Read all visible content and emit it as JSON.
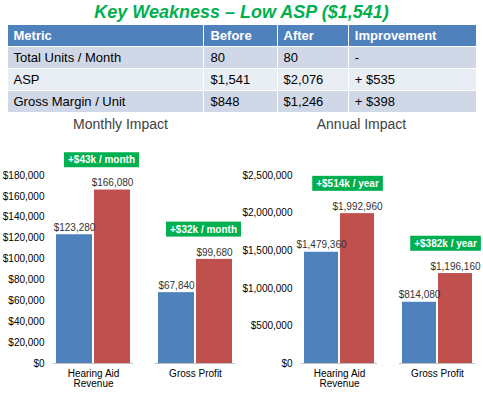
{
  "title": "Key Weakness – Low ASP ($1,541)",
  "table": {
    "header": [
      "Metric",
      "Before",
      "After",
      "Improvement"
    ],
    "rows": [
      [
        "Total Units / Month",
        "80",
        "80",
        "-"
      ],
      [
        "ASP",
        "$1,541",
        "$2,076",
        "+ $535"
      ],
      [
        "Gross Margin / Unit",
        "$848",
        "$1,246",
        "+ $398"
      ]
    ]
  },
  "chart_data": [
    {
      "type": "bar",
      "title": "Monthly Impact",
      "categories": [
        "Hearing Aid Revenue",
        "Gross Profit"
      ],
      "series": [
        {
          "color": "#4f81bd",
          "values": [
            123280,
            67840
          ],
          "value_labels": [
            "$123,280",
            "$67,840"
          ]
        },
        {
          "color": "#c0504d",
          "values": [
            166080,
            99680
          ],
          "value_labels": [
            "$166,080",
            "$99,680"
          ]
        }
      ],
      "ylim": [
        0,
        180000
      ],
      "yticks": [
        {
          "value": 0,
          "label": "$0"
        },
        {
          "value": 20000,
          "label": "$20,000"
        },
        {
          "value": 40000,
          "label": "$40,000"
        },
        {
          "value": 60000,
          "label": "$60,000"
        },
        {
          "value": 80000,
          "label": "$80,000"
        },
        {
          "value": 100000,
          "label": "$100,000"
        },
        {
          "value": 120000,
          "label": "$120,000"
        },
        {
          "value": 140000,
          "label": "$140,000"
        },
        {
          "value": 160000,
          "label": "$160,000"
        },
        {
          "value": 180000,
          "label": "$180,000"
        }
      ],
      "annotations": [
        {
          "text": "+$43k / month",
          "category": "Hearing Aid Revenue"
        },
        {
          "text": "+$32k / month",
          "category": "Gross Profit"
        }
      ],
      "data_labels": true,
      "grid": false
    },
    {
      "type": "bar",
      "title": "Annual Impact",
      "categories": [
        "Hearing Aid Revenue",
        "Gross Profit"
      ],
      "series": [
        {
          "color": "#4f81bd",
          "values": [
            1479360,
            814080
          ],
          "value_labels": [
            "$1,479,360",
            "$814,080"
          ]
        },
        {
          "color": "#c0504d",
          "values": [
            1992960,
            1196160
          ],
          "value_labels": [
            "$1,992,960",
            "$1,196,160"
          ]
        }
      ],
      "ylim": [
        0,
        2500000
      ],
      "yticks": [
        {
          "value": 0,
          "label": "$0"
        },
        {
          "value": 500000,
          "label": "$500,000"
        },
        {
          "value": 1000000,
          "label": "$1,000,000"
        },
        {
          "value": 1500000,
          "label": "$1,500,000"
        },
        {
          "value": 2000000,
          "label": "$2,000,000"
        },
        {
          "value": 2500000,
          "label": "$2,500,000"
        }
      ],
      "annotations": [
        {
          "text": "+$514k / year",
          "category": "Hearing Aid Revenue"
        },
        {
          "text": "+$382k / year",
          "category": "Gross Profit"
        }
      ],
      "data_labels": true,
      "grid": false
    }
  ]
}
